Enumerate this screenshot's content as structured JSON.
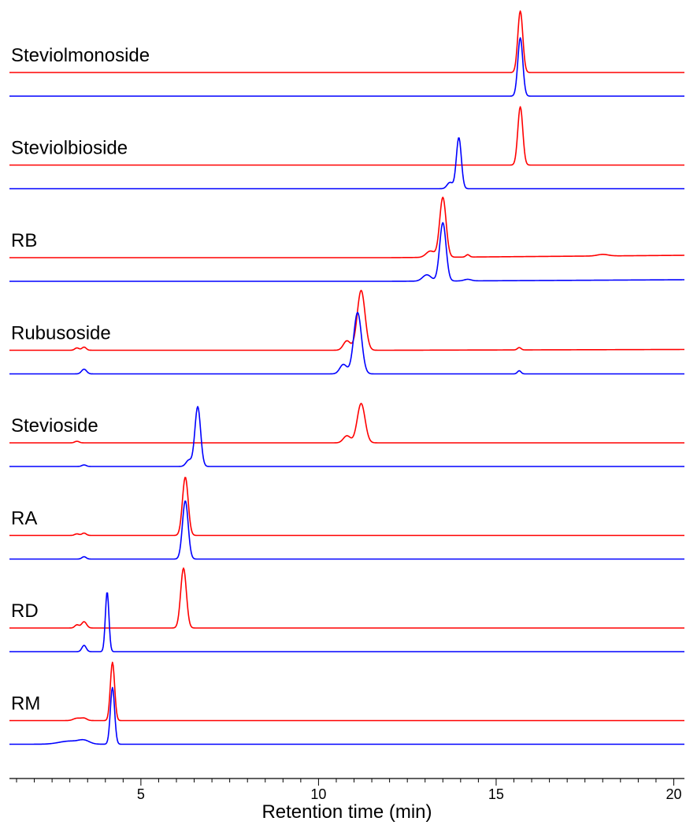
{
  "chart_data": {
    "type": "line",
    "title": "",
    "xlabel": "Retention time (min)",
    "ylabel": "",
    "xlim": [
      1.3,
      20.3
    ],
    "x_ticks": [
      5,
      10,
      15,
      20
    ],
    "grid": false,
    "legend": "none",
    "colors": {
      "red": "#ff0000",
      "blue": "#0000ff"
    },
    "panels": [
      {
        "label": "Steviolmonoside",
        "red": {
          "peaks": [
            {
              "rt": 15.68,
              "height": 78,
              "width": 0.07
            }
          ],
          "baseline_drift": 0
        },
        "blue": {
          "peaks": [
            {
              "rt": 15.68,
              "height": 74,
              "width": 0.07
            }
          ],
          "baseline_drift": 0
        }
      },
      {
        "label": "Steviolbioside",
        "red": {
          "peaks": [
            {
              "rt": 15.68,
              "height": 74,
              "width": 0.07
            }
          ],
          "baseline_drift": 0
        },
        "blue": {
          "peaks": [
            {
              "rt": 13.95,
              "height": 65,
              "width": 0.07
            },
            {
              "rt": 13.7,
              "height": 8,
              "width": 0.08
            }
          ],
          "baseline_drift": 0
        }
      },
      {
        "label": "RB",
        "red": {
          "peaks": [
            {
              "rt": 13.5,
              "height": 76,
              "width": 0.09
            },
            {
              "rt": 13.15,
              "height": 8,
              "width": 0.12
            },
            {
              "rt": 14.2,
              "height": 3,
              "width": 0.05
            },
            {
              "rt": 18.0,
              "height": 2,
              "width": 0.15
            }
          ],
          "baseline_drift": 3
        },
        "blue": {
          "peaks": [
            {
              "rt": 13.5,
              "height": 74,
              "width": 0.09
            },
            {
              "rt": 13.05,
              "height": 8,
              "width": 0.12
            },
            {
              "rt": 14.2,
              "height": 2,
              "width": 0.1
            }
          ],
          "baseline_drift": 2
        }
      },
      {
        "label": "Rubusoside",
        "red": {
          "peaks": [
            {
              "rt": 11.2,
              "height": 76,
              "width": 0.11
            },
            {
              "rt": 10.8,
              "height": 12,
              "width": 0.1
            },
            {
              "rt": 3.2,
              "height": 3,
              "width": 0.06
            },
            {
              "rt": 3.4,
              "height": 4,
              "width": 0.06
            },
            {
              "rt": 15.65,
              "height": 3,
              "width": 0.05
            }
          ],
          "baseline_drift": 1
        },
        "blue": {
          "peaks": [
            {
              "rt": 11.1,
              "height": 78,
              "width": 0.11
            },
            {
              "rt": 10.7,
              "height": 12,
              "width": 0.1
            },
            {
              "rt": 3.4,
              "height": 6,
              "width": 0.07
            },
            {
              "rt": 15.65,
              "height": 4,
              "width": 0.05
            }
          ],
          "baseline_drift": 0
        }
      },
      {
        "label": "Stevioside",
        "red": {
          "peaks": [
            {
              "rt": 11.2,
              "height": 50,
              "width": 0.11
            },
            {
              "rt": 10.8,
              "height": 9,
              "width": 0.1
            },
            {
              "rt": 3.2,
              "height": 2,
              "width": 0.06
            }
          ],
          "baseline_drift": 0
        },
        "blue": {
          "peaks": [
            {
              "rt": 6.6,
              "height": 76,
              "width": 0.08
            },
            {
              "rt": 6.35,
              "height": 8,
              "width": 0.08
            },
            {
              "rt": 3.4,
              "height": 2,
              "width": 0.06
            }
          ],
          "baseline_drift": 0
        }
      },
      {
        "label": "RA",
        "red": {
          "peaks": [
            {
              "rt": 6.25,
              "height": 74,
              "width": 0.08
            },
            {
              "rt": 3.2,
              "height": 2,
              "width": 0.06
            },
            {
              "rt": 3.4,
              "height": 3,
              "width": 0.06
            }
          ],
          "baseline_drift": 0
        },
        "blue": {
          "peaks": [
            {
              "rt": 6.25,
              "height": 74,
              "width": 0.08
            },
            {
              "rt": 3.4,
              "height": 3,
              "width": 0.06
            }
          ],
          "baseline_drift": 0
        }
      },
      {
        "label": "RD",
        "red": {
          "peaks": [
            {
              "rt": 6.2,
              "height": 76,
              "width": 0.08
            },
            {
              "rt": 3.2,
              "height": 4,
              "width": 0.06
            },
            {
              "rt": 3.4,
              "height": 8,
              "width": 0.07
            }
          ],
          "baseline_drift": 0
        },
        "blue": {
          "peaks": [
            {
              "rt": 4.05,
              "height": 76,
              "width": 0.05
            },
            {
              "rt": 3.4,
              "height": 8,
              "width": 0.06
            }
          ],
          "baseline_drift": 0
        }
      },
      {
        "label": "RM",
        "red": {
          "peaks": [
            {
              "rt": 4.2,
              "height": 74,
              "width": 0.06
            },
            {
              "rt": 3.2,
              "height": 3,
              "width": 0.1
            },
            {
              "rt": 3.4,
              "height": 3,
              "width": 0.08
            }
          ],
          "baseline_drift": 0
        },
        "blue": {
          "peaks": [
            {
              "rt": 4.2,
              "height": 72,
              "width": 0.06
            },
            {
              "rt": 3.0,
              "height": 4,
              "width": 0.3
            },
            {
              "rt": 3.4,
              "height": 4,
              "width": 0.15
            }
          ],
          "baseline_drift": 0
        }
      }
    ]
  }
}
